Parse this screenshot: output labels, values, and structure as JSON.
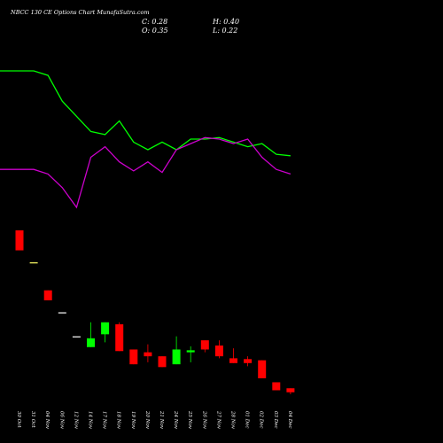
{
  "chart_data": {
    "type": "candlestick",
    "title": "NBCC 130 CE Options Chart MunafaSutra.com",
    "ohlc_labels": {
      "close": "C: 0.28",
      "high": "H: 0.40",
      "open": "O: 0.35",
      "low": "L: 0.22"
    },
    "colors": {
      "up": "#00ff00",
      "down": "#ff0000",
      "doji": "#ffffff",
      "line_green": "#00ff00",
      "line_magenta": "#cc00cc",
      "background": "#000000"
    },
    "categories": [
      "30 Oct",
      "31 Oct",
      "04 Nov",
      "06 Nov",
      "12 Nov",
      "14 Nov",
      "17 Nov",
      "18 Nov",
      "19 Nov",
      "20 Nov",
      "21 Nov",
      "24 Nov",
      "25 Nov",
      "26 Nov",
      "27 Nov",
      "28 Nov",
      "01 Dec",
      "02 Dec",
      "03 Dec",
      "04 Dec"
    ],
    "candles": [
      {
        "open": 3.6,
        "high": 3.6,
        "low": 3.1,
        "close": 3.1
      },
      {
        "open": 2.8,
        "high": 2.8,
        "low": 2.8,
        "close": 2.8
      },
      {
        "open": 2.1,
        "high": 2.1,
        "low": 1.85,
        "close": 1.85
      },
      {
        "open": 1.55,
        "high": 1.55,
        "low": 1.55,
        "close": 1.55
      },
      {
        "open": 0.95,
        "high": 0.95,
        "low": 0.95,
        "close": 0.95
      },
      {
        "open": 0.68,
        "high": 1.3,
        "low": 0.68,
        "close": 0.9
      },
      {
        "open": 1.0,
        "high": 1.3,
        "low": 0.8,
        "close": 1.3
      },
      {
        "open": 1.25,
        "high": 1.3,
        "low": 0.58,
        "close": 0.58
      },
      {
        "open": 0.62,
        "high": 0.62,
        "low": 0.25,
        "close": 0.25
      },
      {
        "open": 0.55,
        "high": 0.75,
        "low": 0.3,
        "close": 0.45
      },
      {
        "open": 0.45,
        "high": 0.45,
        "low": 0.18,
        "close": 0.18
      },
      {
        "open": 0.25,
        "high": 0.95,
        "low": 0.25,
        "close": 0.62
      },
      {
        "open": 0.55,
        "high": 0.7,
        "low": 0.3,
        "close": 0.6
      },
      {
        "open": 0.85,
        "high": 0.85,
        "low": 0.55,
        "close": 0.62
      },
      {
        "open": 0.72,
        "high": 0.85,
        "low": 0.4,
        "close": 0.45
      },
      {
        "open": 0.4,
        "high": 0.65,
        "low": 0.28,
        "close": 0.28
      },
      {
        "open": 0.38,
        "high": 0.45,
        "low": 0.2,
        "close": 0.28
      },
      {
        "open": 0.35,
        "high": 0.35,
        "low": -0.1,
        "close": -0.1
      },
      {
        "open": -0.2,
        "high": -0.2,
        "low": -0.4,
        "close": -0.4
      },
      {
        "open": -0.35,
        "high": -0.35,
        "low": -0.5,
        "close": -0.45
      }
    ],
    "series": [
      {
        "values": [
          0.85,
          0.85,
          0.82,
          0.65,
          0.55,
          0.45,
          0.43,
          0.52,
          0.38,
          0.33,
          0.38,
          0.33,
          0.4,
          0.4,
          0.41,
          0.38,
          0.35,
          0.37,
          0.3,
          0.29
        ]
      },
      {
        "values": [
          0.2,
          0.2,
          0.17,
          0.08,
          -0.05,
          0.28,
          0.35,
          0.25,
          0.19,
          0.25,
          0.18,
          0.33,
          0.37,
          0.41,
          0.4,
          0.37,
          0.4,
          0.28,
          0.2,
          0.17
        ]
      }
    ]
  }
}
